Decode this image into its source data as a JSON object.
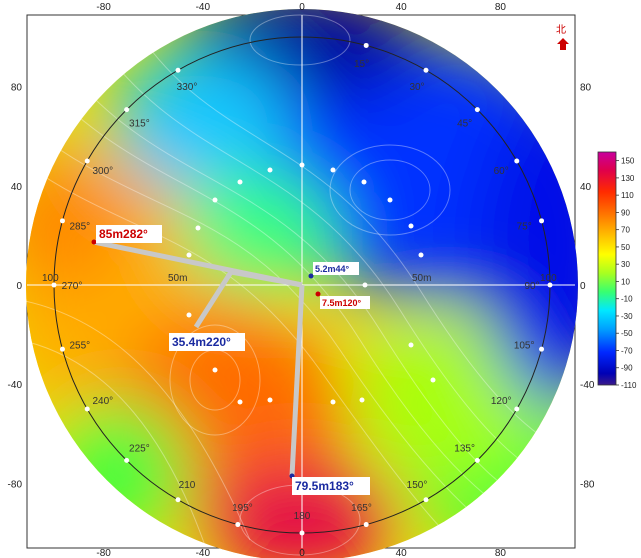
{
  "north_label": "北",
  "chart_data": {
    "type": "heatmap",
    "xlim": [
      -110,
      110
    ],
    "ylim": [
      -110,
      110
    ],
    "x_ticks": [
      -80,
      -40,
      0,
      40,
      80
    ],
    "y_ticks": [
      80,
      40,
      0,
      -40,
      -80
    ],
    "grid": false,
    "colorbar": {
      "ticks": [
        150,
        130,
        110,
        90,
        70,
        50,
        30,
        10,
        -10,
        -30,
        -50,
        -70,
        -90,
        -110
      ],
      "colors": [
        "#3a1a8a",
        "#0000b5",
        "#0028ff",
        "#00a0ff",
        "#00e8ff",
        "#38ff70",
        "#a8ff20",
        "#ffff00",
        "#ffc000",
        "#ff7800",
        "#ff2a00",
        "#e0004a",
        "#c8009e"
      ],
      "range": [
        -110,
        160
      ]
    },
    "ring_labels": [
      "50m",
      "50m",
      "100",
      "100"
    ],
    "azimuth_labels": [
      "15°",
      "30°",
      "45°",
      "60°",
      "75°",
      "90°",
      "105°",
      "120°",
      "135°",
      "150°",
      "165°",
      "180",
      "195°",
      "210",
      "225°",
      "240°",
      "255°",
      "270°",
      "285°",
      "300°",
      "315°",
      "330°"
    ],
    "annotations": [
      {
        "text": "85m282°",
        "color": "#cc0000",
        "x": -85,
        "y": 18
      },
      {
        "text": "35.4m220°",
        "color": "#1a2aa0",
        "x": -22.8,
        "y": -27
      },
      {
        "text": "79.5m183°",
        "color": "#1a2aa0",
        "x": -4.2,
        "y": -79.4
      },
      {
        "text": "5.2m44°",
        "color": "#1a2aa0",
        "x": 3.6,
        "y": 3.7
      },
      {
        "text": "7.5m120°",
        "color": "#cc0000",
        "x": 6.5,
        "y": -3.8
      }
    ]
  }
}
